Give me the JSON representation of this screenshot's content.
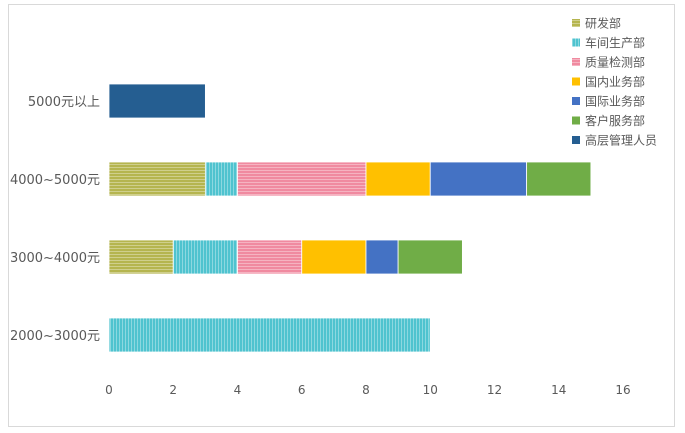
{
  "chart_data": {
    "type": "bar",
    "orientation": "horizontal",
    "stacked": true,
    "title": "",
    "xlabel": "",
    "ylabel": "",
    "categories": [
      "2000~3000元",
      "3000~4000元",
      "4000~5000元",
      "5000元以上"
    ],
    "xlim": [
      0,
      16
    ],
    "x_ticks": [
      "0",
      "2",
      "4",
      "6",
      "8",
      "10",
      "12",
      "14",
      "16"
    ],
    "grid": false,
    "legend_position": "top-right",
    "series": [
      {
        "name": "研发部",
        "color": "#b5b54f",
        "pattern": "horizontal-stripes",
        "values": [
          0,
          2,
          3,
          0
        ]
      },
      {
        "name": "车间生产部",
        "color": "#4fc3cf",
        "pattern": "vertical-stripes",
        "values": [
          10,
          2,
          1,
          0
        ]
      },
      {
        "name": "质量检测部",
        "color": "#f08aa0",
        "pattern": "horizontal-stripes",
        "values": [
          0,
          2,
          4,
          0
        ]
      },
      {
        "name": "国内业务部",
        "color": "#ffc000",
        "pattern": "solid",
        "values": [
          0,
          2,
          2,
          0
        ]
      },
      {
        "name": "国际业务部",
        "color": "#4472c4",
        "pattern": "solid",
        "values": [
          0,
          1,
          3,
          0
        ]
      },
      {
        "name": "客户服务部",
        "color": "#70ad47",
        "pattern": "solid",
        "values": [
          0,
          2,
          2,
          0
        ]
      },
      {
        "name": "高层管理人员",
        "color": "#255e91",
        "pattern": "solid",
        "values": [
          0,
          0,
          0,
          3
        ]
      }
    ]
  }
}
